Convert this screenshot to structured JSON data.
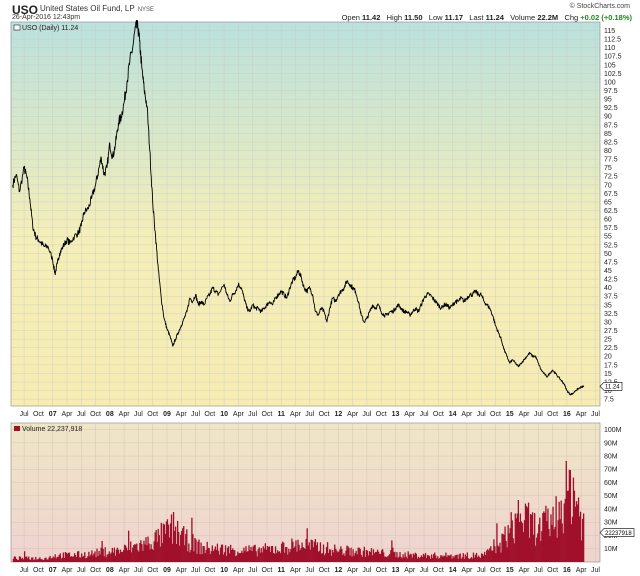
{
  "header": {
    "symbol": "USO",
    "name": "United States Oil Fund, LP",
    "exchange": "NYSE",
    "datetime": "26-Apr-2016 12:43pm",
    "brand": "© StockCharts.com",
    "open_label": "Open",
    "open": "11.42",
    "high_label": "High",
    "high": "11.50",
    "low_label": "Low",
    "low": "11.17",
    "last_label": "Last",
    "last": "11.24",
    "volume_label": "Volume",
    "volume": "22.2M",
    "chg_label": "Chg",
    "chg": "+0.02 (+0.18%)"
  },
  "chart_data": {
    "type": "line",
    "price_panel": {
      "legend": "USO (Daily) 11.24",
      "last_value_label": "11.24",
      "y_ticks": [
        7.5,
        10,
        12.5,
        15,
        17.5,
        20,
        22.5,
        25,
        27.5,
        30,
        32.5,
        35,
        37.5,
        40,
        42.5,
        45,
        47.5,
        50,
        52.5,
        55,
        57.5,
        60,
        62.5,
        65,
        67.5,
        70,
        72.5,
        75,
        77.5,
        80,
        82.5,
        85,
        87.5,
        90,
        92.5,
        95,
        97.5,
        100,
        102.5,
        105,
        107.5,
        110,
        112.5,
        115
      ],
      "ylim": [
        5.5,
        117.5
      ],
      "gradient_colors": [
        "#b9e1dc",
        "#f4eeb8",
        "#f7ecb2"
      ],
      "line_color": "#000000",
      "points": [
        [
          2006.3,
          70
        ],
        [
          2006.36,
          73
        ],
        [
          2006.42,
          68
        ],
        [
          2006.5,
          75
        ],
        [
          2006.55,
          72
        ],
        [
          2006.6,
          66
        ],
        [
          2006.65,
          58
        ],
        [
          2006.7,
          55
        ],
        [
          2006.75,
          54
        ],
        [
          2006.8,
          53
        ],
        [
          2006.85,
          52
        ],
        [
          2006.92,
          52
        ],
        [
          2007.0,
          48
        ],
        [
          2007.04,
          44
        ],
        [
          2007.08,
          47
        ],
        [
          2007.12,
          50
        ],
        [
          2007.18,
          52
        ],
        [
          2007.25,
          54
        ],
        [
          2007.3,
          53
        ],
        [
          2007.38,
          55
        ],
        [
          2007.45,
          56
        ],
        [
          2007.5,
          58
        ],
        [
          2007.55,
          62
        ],
        [
          2007.62,
          63
        ],
        [
          2007.68,
          66
        ],
        [
          2007.75,
          70
        ],
        [
          2007.8,
          74
        ],
        [
          2007.85,
          78
        ],
        [
          2007.9,
          73
        ],
        [
          2007.95,
          75
        ],
        [
          2008.0,
          82
        ],
        [
          2008.05,
          78
        ],
        [
          2008.1,
          82
        ],
        [
          2008.15,
          88
        ],
        [
          2008.2,
          90
        ],
        [
          2008.25,
          94
        ],
        [
          2008.3,
          100
        ],
        [
          2008.35,
          106
        ],
        [
          2008.4,
          110
        ],
        [
          2008.45,
          116
        ],
        [
          2008.49,
          116
        ],
        [
          2008.52,
          112
        ],
        [
          2008.56,
          104
        ],
        [
          2008.6,
          98
        ],
        [
          2008.65,
          93
        ],
        [
          2008.7,
          80
        ],
        [
          2008.75,
          65
        ],
        [
          2008.8,
          55
        ],
        [
          2008.85,
          45
        ],
        [
          2008.9,
          37
        ],
        [
          2008.95,
          31
        ],
        [
          2009.0,
          28
        ],
        [
          2009.05,
          26
        ],
        [
          2009.1,
          23
        ],
        [
          2009.15,
          25
        ],
        [
          2009.2,
          27
        ],
        [
          2009.25,
          29
        ],
        [
          2009.3,
          31
        ],
        [
          2009.35,
          33
        ],
        [
          2009.4,
          37
        ],
        [
          2009.45,
          36
        ],
        [
          2009.5,
          38
        ],
        [
          2009.55,
          35
        ],
        [
          2009.6,
          36
        ],
        [
          2009.65,
          35
        ],
        [
          2009.7,
          37
        ],
        [
          2009.75,
          38
        ],
        [
          2009.8,
          40
        ],
        [
          2009.85,
          39
        ],
        [
          2009.9,
          38
        ],
        [
          2010.0,
          41
        ],
        [
          2010.05,
          38
        ],
        [
          2010.1,
          36
        ],
        [
          2010.15,
          38
        ],
        [
          2010.2,
          39
        ],
        [
          2010.25,
          41
        ],
        [
          2010.3,
          40
        ],
        [
          2010.35,
          37
        ],
        [
          2010.4,
          34
        ],
        [
          2010.45,
          33
        ],
        [
          2010.5,
          35
        ],
        [
          2010.55,
          34
        ],
        [
          2010.6,
          34
        ],
        [
          2010.65,
          33
        ],
        [
          2010.7,
          34
        ],
        [
          2010.75,
          35
        ],
        [
          2010.8,
          36
        ],
        [
          2010.85,
          35
        ],
        [
          2010.9,
          37
        ],
        [
          2010.95,
          38
        ],
        [
          2011.0,
          39
        ],
        [
          2011.05,
          38
        ],
        [
          2011.1,
          37
        ],
        [
          2011.15,
          40
        ],
        [
          2011.2,
          42
        ],
        [
          2011.25,
          43
        ],
        [
          2011.3,
          45
        ],
        [
          2011.35,
          43
        ],
        [
          2011.4,
          40
        ],
        [
          2011.45,
          39
        ],
        [
          2011.5,
          40
        ],
        [
          2011.55,
          38
        ],
        [
          2011.6,
          33
        ],
        [
          2011.65,
          32
        ],
        [
          2011.7,
          34
        ],
        [
          2011.75,
          33
        ],
        [
          2011.8,
          30
        ],
        [
          2011.85,
          34
        ],
        [
          2011.9,
          37
        ],
        [
          2011.95,
          36
        ],
        [
          2012.0,
          38
        ],
        [
          2012.05,
          39
        ],
        [
          2012.1,
          40
        ],
        [
          2012.15,
          42
        ],
        [
          2012.2,
          41
        ],
        [
          2012.25,
          40
        ],
        [
          2012.3,
          39
        ],
        [
          2012.35,
          36
        ],
        [
          2012.4,
          32
        ],
        [
          2012.45,
          30
        ],
        [
          2012.5,
          31
        ],
        [
          2012.55,
          33
        ],
        [
          2012.6,
          35
        ],
        [
          2012.65,
          34
        ],
        [
          2012.7,
          35
        ],
        [
          2012.75,
          33
        ],
        [
          2012.8,
          32
        ],
        [
          2012.85,
          32
        ],
        [
          2012.9,
          33
        ],
        [
          2012.95,
          33
        ],
        [
          2013.0,
          34
        ],
        [
          2013.05,
          35
        ],
        [
          2013.1,
          34
        ],
        [
          2013.15,
          33
        ],
        [
          2013.2,
          33
        ],
        [
          2013.25,
          32
        ],
        [
          2013.3,
          33
        ],
        [
          2013.35,
          34
        ],
        [
          2013.4,
          33
        ],
        [
          2013.45,
          35
        ],
        [
          2013.5,
          37
        ],
        [
          2013.55,
          38
        ],
        [
          2013.6,
          38
        ],
        [
          2013.65,
          37
        ],
        [
          2013.7,
          36
        ],
        [
          2013.75,
          35
        ],
        [
          2013.8,
          34
        ],
        [
          2013.85,
          35
        ],
        [
          2013.9,
          35
        ],
        [
          2013.95,
          34
        ],
        [
          2014.0,
          35
        ],
        [
          2014.05,
          36
        ],
        [
          2014.1,
          36
        ],
        [
          2014.15,
          37
        ],
        [
          2014.2,
          36
        ],
        [
          2014.25,
          37
        ],
        [
          2014.3,
          38
        ],
        [
          2014.35,
          38
        ],
        [
          2014.4,
          39
        ],
        [
          2014.45,
          38
        ],
        [
          2014.5,
          38
        ],
        [
          2014.55,
          36
        ],
        [
          2014.6,
          35
        ],
        [
          2014.65,
          34
        ],
        [
          2014.7,
          32
        ],
        [
          2014.75,
          29
        ],
        [
          2014.8,
          27
        ],
        [
          2014.85,
          25
        ],
        [
          2014.9,
          22
        ],
        [
          2014.95,
          20
        ],
        [
          2015.0,
          18
        ],
        [
          2015.05,
          19
        ],
        [
          2015.1,
          18
        ],
        [
          2015.15,
          17
        ],
        [
          2015.2,
          18
        ],
        [
          2015.25,
          19
        ],
        [
          2015.3,
          20
        ],
        [
          2015.35,
          21
        ],
        [
          2015.4,
          20
        ],
        [
          2015.45,
          20
        ],
        [
          2015.5,
          18
        ],
        [
          2015.55,
          16
        ],
        [
          2015.6,
          15
        ],
        [
          2015.65,
          14
        ],
        [
          2015.7,
          15
        ],
        [
          2015.75,
          16
        ],
        [
          2015.8,
          15
        ],
        [
          2015.85,
          14
        ],
        [
          2015.9,
          13
        ],
        [
          2015.95,
          12
        ],
        [
          2016.0,
          10
        ],
        [
          2016.05,
          9
        ],
        [
          2016.1,
          9
        ],
        [
          2016.15,
          10
        ],
        [
          2016.2,
          10.5
        ],
        [
          2016.25,
          11
        ],
        [
          2016.3,
          11.24
        ]
      ]
    },
    "volume_panel": {
      "legend": "Volume 22,237,918",
      "last_value_label": "22237918",
      "y_ticks": [
        10,
        20,
        30,
        40,
        50,
        60,
        70,
        80,
        90,
        100
      ],
      "y_tick_labels": [
        "10M",
        "20M",
        "30M",
        "40M",
        "50M",
        "60M",
        "70M",
        "80M",
        "90M",
        "100M"
      ],
      "ylim": [
        0,
        105
      ],
      "unit": "M",
      "gradient_colors": [
        "#efe6c6",
        "#efd3cf"
      ],
      "bar_color": "#a0102a",
      "profile": [
        [
          2006.3,
          3
        ],
        [
          2006.9,
          3
        ],
        [
          2007.0,
          5
        ],
        [
          2007.6,
          6
        ],
        [
          2007.9,
          8
        ],
        [
          2008.2,
          9
        ],
        [
          2008.4,
          12
        ],
        [
          2008.6,
          14
        ],
        [
          2008.8,
          18
        ],
        [
          2009.0,
          24
        ],
        [
          2009.1,
          27
        ],
        [
          2009.3,
          18
        ],
        [
          2009.6,
          11
        ],
        [
          2010.0,
          10
        ],
        [
          2010.5,
          9
        ],
        [
          2011.0,
          11
        ],
        [
          2011.3,
          14
        ],
        [
          2011.6,
          12
        ],
        [
          2012.0,
          9
        ],
        [
          2012.5,
          8
        ],
        [
          2013.0,
          6
        ],
        [
          2013.5,
          5
        ],
        [
          2014.0,
          5
        ],
        [
          2014.5,
          5
        ],
        [
          2014.8,
          12
        ],
        [
          2015.0,
          26
        ],
        [
          2015.2,
          35
        ],
        [
          2015.5,
          25
        ],
        [
          2015.8,
          36
        ],
        [
          2016.0,
          55
        ],
        [
          2016.1,
          60
        ],
        [
          2016.2,
          42
        ],
        [
          2016.3,
          28
        ]
      ]
    },
    "x_axis": {
      "xlim": [
        2006.27,
        2016.58
      ],
      "ticks": [
        {
          "x": 2006.5,
          "label": "Jul",
          "year": false
        },
        {
          "x": 2006.75,
          "label": "Oct",
          "year": false
        },
        {
          "x": 2007.0,
          "label": "07",
          "year": true
        },
        {
          "x": 2007.25,
          "label": "Apr",
          "year": false
        },
        {
          "x": 2007.5,
          "label": "Jul",
          "year": false
        },
        {
          "x": 2007.75,
          "label": "Oct",
          "year": false
        },
        {
          "x": 2008.0,
          "label": "08",
          "year": true
        },
        {
          "x": 2008.25,
          "label": "Apr",
          "year": false
        },
        {
          "x": 2008.5,
          "label": "Jul",
          "year": false
        },
        {
          "x": 2008.75,
          "label": "Oct",
          "year": false
        },
        {
          "x": 2009.0,
          "label": "09",
          "year": true
        },
        {
          "x": 2009.25,
          "label": "Apr",
          "year": false
        },
        {
          "x": 2009.5,
          "label": "Jul",
          "year": false
        },
        {
          "x": 2009.75,
          "label": "Oct",
          "year": false
        },
        {
          "x": 2010.0,
          "label": "10",
          "year": true
        },
        {
          "x": 2010.25,
          "label": "Apr",
          "year": false
        },
        {
          "x": 2010.5,
          "label": "Jul",
          "year": false
        },
        {
          "x": 2010.75,
          "label": "Oct",
          "year": false
        },
        {
          "x": 2011.0,
          "label": "11",
          "year": true
        },
        {
          "x": 2011.25,
          "label": "Apr",
          "year": false
        },
        {
          "x": 2011.5,
          "label": "Jul",
          "year": false
        },
        {
          "x": 2011.75,
          "label": "Oct",
          "year": false
        },
        {
          "x": 2012.0,
          "label": "12",
          "year": true
        },
        {
          "x": 2012.25,
          "label": "Apr",
          "year": false
        },
        {
          "x": 2012.5,
          "label": "Jul",
          "year": false
        },
        {
          "x": 2012.75,
          "label": "Oct",
          "year": false
        },
        {
          "x": 2013.0,
          "label": "13",
          "year": true
        },
        {
          "x": 2013.25,
          "label": "Apr",
          "year": false
        },
        {
          "x": 2013.5,
          "label": "Jul",
          "year": false
        },
        {
          "x": 2013.75,
          "label": "Oct",
          "year": false
        },
        {
          "x": 2014.0,
          "label": "14",
          "year": true
        },
        {
          "x": 2014.25,
          "label": "Apr",
          "year": false
        },
        {
          "x": 2014.5,
          "label": "Jul",
          "year": false
        },
        {
          "x": 2014.75,
          "label": "Oct",
          "year": false
        },
        {
          "x": 2015.0,
          "label": "15",
          "year": true
        },
        {
          "x": 2015.25,
          "label": "Apr",
          "year": false
        },
        {
          "x": 2015.5,
          "label": "Jul",
          "year": false
        },
        {
          "x": 2015.75,
          "label": "Oct",
          "year": false
        },
        {
          "x": 2016.0,
          "label": "16",
          "year": true
        },
        {
          "x": 2016.25,
          "label": "Apr",
          "year": false
        },
        {
          "x": 2016.5,
          "label": "Jul",
          "year": false
        }
      ]
    },
    "grid": true
  }
}
